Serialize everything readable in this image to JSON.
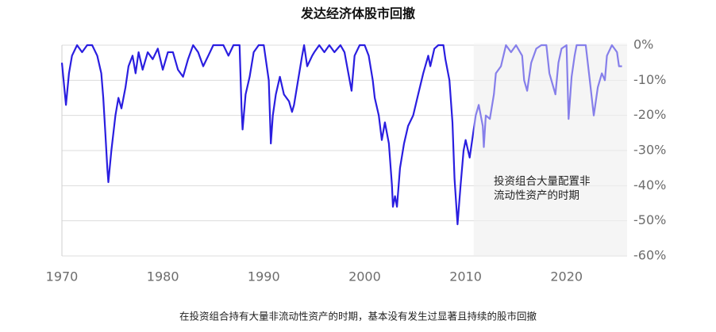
{
  "chart_data": {
    "type": "line",
    "title": "发达经济体股市回撤",
    "caption": "在投资组合持有大量非流动性资产的时期，基本没有发生过显著且持续的股市回撤",
    "shaded_region": {
      "x": [
        2010.8,
        2026
      ],
      "annotation_lines": [
        "投资组合大量配置非",
        "流动性资产的时期"
      ]
    },
    "color": "#2a1ee0",
    "grid": true,
    "xlim": [
      1970,
      2026
    ],
    "ylim": [
      -60,
      0
    ],
    "xticks": [
      1970,
      1980,
      1990,
      2000,
      2010,
      2020
    ],
    "yticks": [
      {
        "value": 0,
        "label": "0%"
      },
      {
        "value": -10,
        "label": "-10%"
      },
      {
        "value": -20,
        "label": "-20%"
      },
      {
        "value": -30,
        "label": "-30%"
      },
      {
        "value": -40,
        "label": "-40%"
      },
      {
        "value": -50,
        "label": "-50%"
      },
      {
        "value": -60,
        "label": "-60%"
      }
    ],
    "x": [
      1970,
      1970.4,
      1970.7,
      1971,
      1971.5,
      1972,
      1972.5,
      1973,
      1973.5,
      1973.9,
      1974.1,
      1974.3,
      1974.5,
      1974.6,
      1974.9,
      1975.3,
      1975.6,
      1975.9,
      1976.3,
      1976.6,
      1977,
      1977.3,
      1977.6,
      1978,
      1978.5,
      1979,
      1979.5,
      1980,
      1980.5,
      1981,
      1981.5,
      1982,
      1982.5,
      1983,
      1983.5,
      1984,
      1984.5,
      1985,
      1986,
      1986.5,
      1987,
      1987.6,
      1987.8,
      1987.9,
      1988.2,
      1988.6,
      1989,
      1989.5,
      1990,
      1990.5,
      1990.7,
      1990.9,
      1991.2,
      1991.6,
      1992,
      1992.5,
      1992.8,
      1993,
      1993.4,
      1993.8,
      1994,
      1994.3,
      1994.8,
      1995,
      1995.5,
      1996,
      1996.5,
      1997,
      1997.6,
      1998,
      1998.7,
      1999,
      1999.5,
      2000,
      2000.4,
      2000.8,
      2001,
      2001.4,
      2001.7,
      2002,
      2002.4,
      2002.7,
      2002.8,
      2003,
      2003.2,
      2003.5,
      2003.9,
      2004.3,
      2004.8,
      2005.3,
      2005.8,
      2006.3,
      2006.5,
      2006.9,
      2007.3,
      2007.8,
      2008,
      2008.4,
      2008.7,
      2008.9,
      2009.2,
      2009.5,
      2009.8,
      2010,
      2010.4,
      2010.7,
      2011,
      2011.3,
      2011.7,
      2011.8,
      2012,
      2012.4,
      2012.8,
      2013,
      2013.5,
      2014,
      2014.5,
      2015,
      2015.6,
      2015.8,
      2016.1,
      2016.5,
      2017,
      2017.5,
      2018,
      2018.3,
      2018.9,
      2019.2,
      2019.5,
      2020,
      2020.2,
      2020.5,
      2020.8,
      2021,
      2021.9,
      2022.3,
      2022.7,
      2022.8,
      2023.1,
      2023.5,
      2023.8,
      2024,
      2024.5,
      2025,
      2025.2,
      2025.5
    ],
    "values": [
      -5,
      -17,
      -8,
      -3,
      0,
      -2,
      0,
      0,
      -3,
      -8,
      -15,
      -25,
      -35,
      -39,
      -30,
      -20,
      -15,
      -18,
      -12,
      -6,
      -3,
      -8,
      -2,
      -7,
      -2,
      -4,
      -1,
      -7,
      -2,
      -2,
      -7,
      -9,
      -4,
      0,
      -2,
      -6,
      -3,
      0,
      0,
      -3,
      0,
      0,
      -18,
      -24,
      -14,
      -9,
      -2,
      0,
      0,
      -10,
      -28,
      -20,
      -14,
      -9,
      -14,
      -16,
      -19,
      -17,
      -10,
      -3,
      0,
      -6,
      -3,
      -2,
      0,
      -2,
      0,
      -2,
      0,
      -2,
      -13,
      -3,
      0,
      0,
      -3,
      -10,
      -15,
      -20,
      -27,
      -22,
      -28,
      -40,
      -46,
      -43,
      -46,
      -35,
      -28,
      -23,
      -20,
      -14,
      -8,
      -3,
      -6,
      -1,
      0,
      0,
      -4,
      -10,
      -22,
      -38,
      -51,
      -40,
      -30,
      -27,
      -32,
      -26,
      -20,
      -17,
      -23,
      -29,
      -20,
      -21,
      -14,
      -8,
      -6,
      0,
      -2,
      0,
      -3,
      -10,
      -13,
      -5,
      -1,
      0,
      0,
      -8,
      -14,
      -5,
      -1,
      0,
      -21,
      -9,
      -3,
      0,
      0,
      -10,
      -20,
      -18,
      -12,
      -8,
      -10,
      -3,
      0,
      -2,
      -6,
      -6
    ]
  }
}
